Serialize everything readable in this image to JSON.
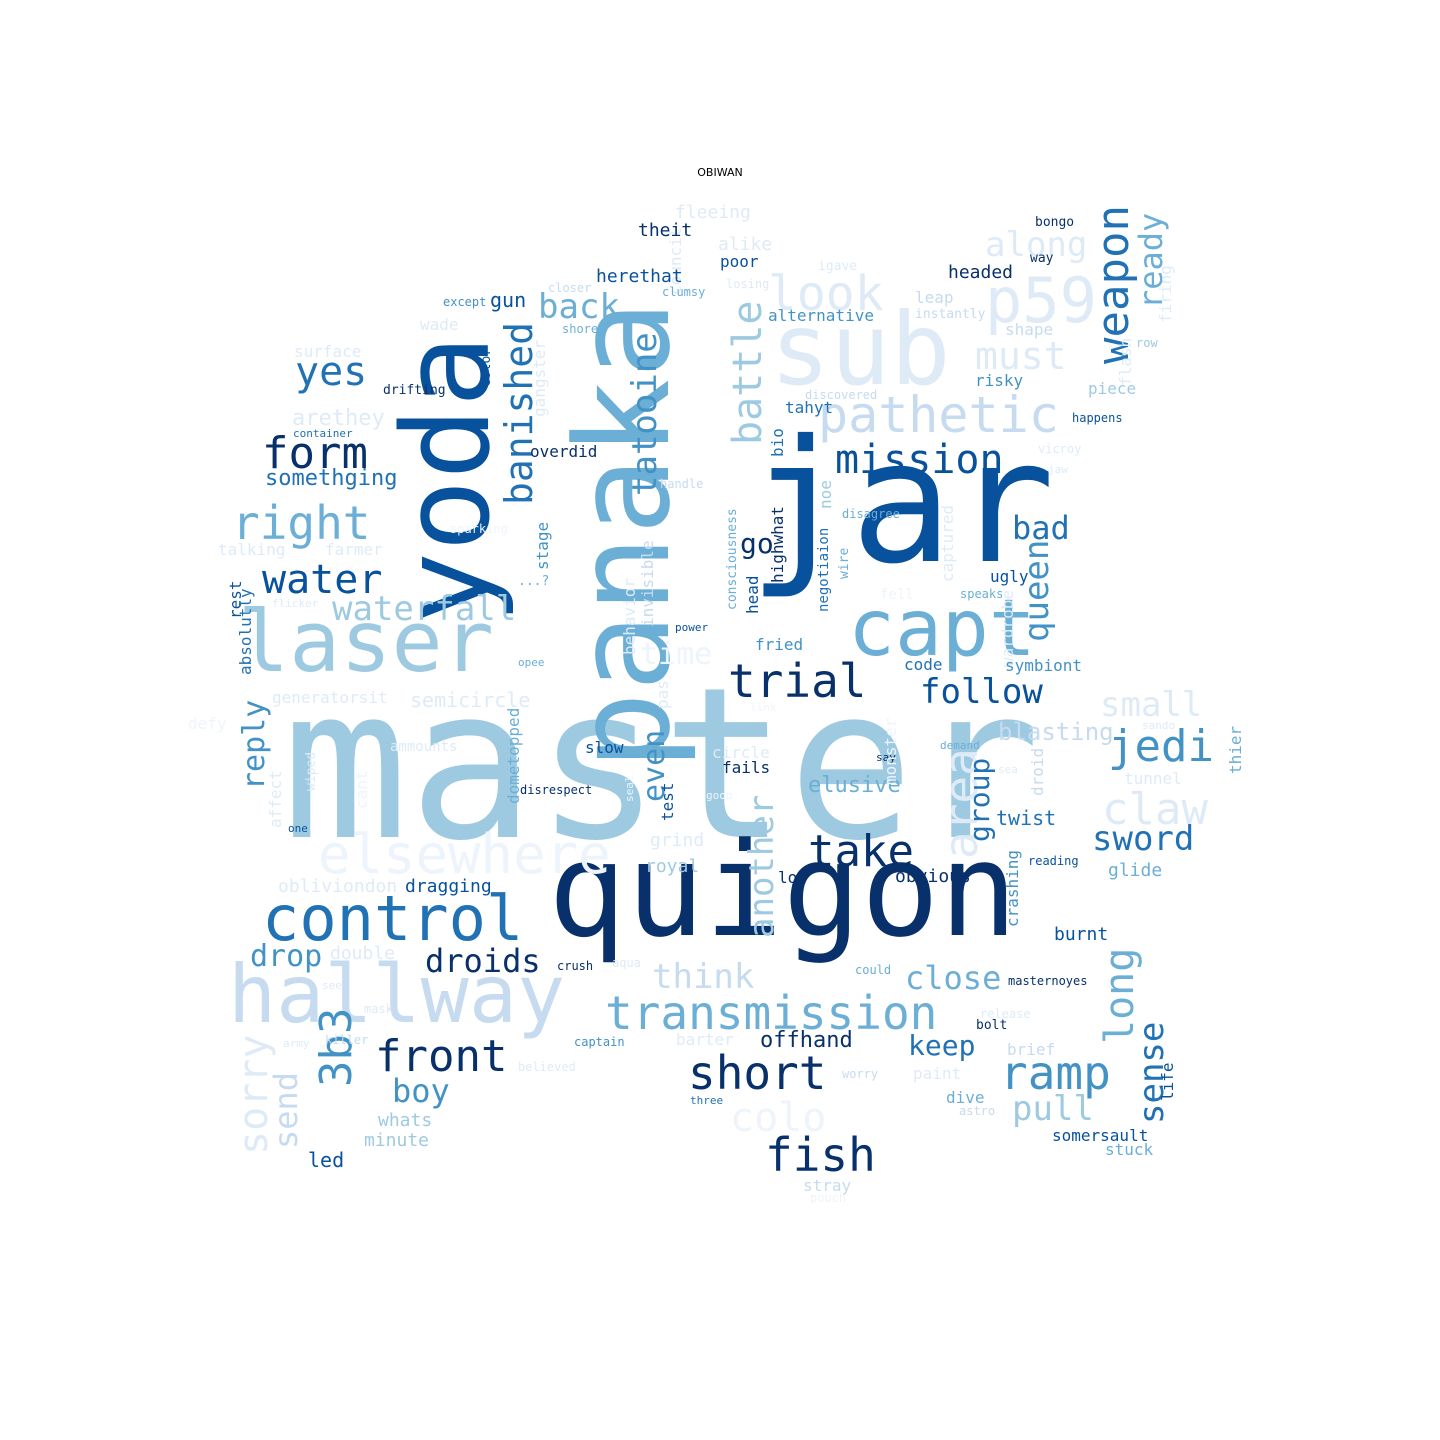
{
  "title": "OBIWAN",
  "palette": [
    "#08306b",
    "#08519c",
    "#2171b5",
    "#4292c6",
    "#6baed6",
    "#9ecae1",
    "#c6dbef",
    "#deebf7",
    "#eef4fb"
  ],
  "words": [
    {
      "text": "master",
      "c": 5
    },
    {
      "text": "quigon",
      "c": 0
    },
    {
      "text": "jar",
      "c": 1
    },
    {
      "text": "panaka",
      "c": 4
    },
    {
      "text": "yoda",
      "c": 1
    },
    {
      "text": "council",
      "c": 7
    },
    {
      "text": "sub",
      "c": 7
    },
    {
      "text": "laser",
      "c": 5
    },
    {
      "text": "capt",
      "c": 4
    },
    {
      "text": "droid",
      "c": 6
    },
    {
      "text": "hallway",
      "c": 6
    },
    {
      "text": "control",
      "c": 2
    },
    {
      "text": "elsewhere",
      "c": 8
    },
    {
      "text": "p59",
      "c": 7
    },
    {
      "text": "pathetic",
      "c": 6
    },
    {
      "text": "look",
      "c": 7
    },
    {
      "text": "transmission",
      "c": 4
    },
    {
      "text": "trial",
      "c": 0
    },
    {
      "text": "mission",
      "c": 1
    },
    {
      "text": "weapon",
      "c": 2
    },
    {
      "text": "along",
      "c": 7
    },
    {
      "text": "must",
      "c": 7
    },
    {
      "text": "short",
      "c": 0
    },
    {
      "text": "fish",
      "c": 0
    },
    {
      "text": "take",
      "c": 0
    },
    {
      "text": "ramp",
      "c": 3
    },
    {
      "text": "jedi",
      "c": 3
    },
    {
      "text": "claw",
      "c": 7
    },
    {
      "text": "front",
      "c": 0
    },
    {
      "text": "form",
      "c": 0
    },
    {
      "text": "right",
      "c": 4
    },
    {
      "text": "water",
      "c": 1
    },
    {
      "text": "yes",
      "c": 2
    },
    {
      "text": "back",
      "c": 4
    },
    {
      "text": "banished",
      "c": 2
    },
    {
      "text": "tatooine",
      "c": 3
    },
    {
      "text": "battle",
      "c": 5
    },
    {
      "text": "3b3",
      "c": 3
    },
    {
      "text": "sorry",
      "c": 7
    },
    {
      "text": "follow",
      "c": 1
    },
    {
      "text": "waterfall",
      "c": 5
    },
    {
      "text": "droids",
      "c": 0
    },
    {
      "text": "think",
      "c": 6
    },
    {
      "text": "close",
      "c": 4
    },
    {
      "text": "long",
      "c": 4
    },
    {
      "text": "sense",
      "c": 2
    },
    {
      "text": "colo",
      "c": 8
    },
    {
      "text": "sword",
      "c": 2
    },
    {
      "text": "pull",
      "c": 5
    },
    {
      "text": "keep",
      "c": 2
    },
    {
      "text": "boy",
      "c": 3
    },
    {
      "text": "drop",
      "c": 3
    },
    {
      "text": "send",
      "c": 6
    },
    {
      "text": "small",
      "c": 7
    },
    {
      "text": "bad",
      "c": 2
    },
    {
      "text": "queen",
      "c": 3
    },
    {
      "text": "time",
      "c": 8
    },
    {
      "text": "area",
      "c": 7
    },
    {
      "text": "another",
      "c": 5
    },
    {
      "text": "reply",
      "c": 3
    },
    {
      "text": "ready",
      "c": 4
    },
    {
      "text": "blasting",
      "c": 6
    },
    {
      "text": "even",
      "c": 3
    },
    {
      "text": "group",
      "c": 2
    },
    {
      "text": "elusive",
      "c": 4
    },
    {
      "text": "offhand",
      "c": 0
    },
    {
      "text": "somethging",
      "c": 2
    },
    {
      "text": "arethey",
      "c": 7
    },
    {
      "text": "semicircle",
      "c": 7
    },
    {
      "text": "go",
      "c": 0
    },
    {
      "text": "twist",
      "c": 2
    },
    {
      "text": "glide",
      "c": 4
    },
    {
      "text": "obvious",
      "c": 0
    },
    {
      "text": "burnt",
      "c": 1
    },
    {
      "text": "somersault",
      "c": 1
    },
    {
      "text": "stuck",
      "c": 4
    },
    {
      "text": "led",
      "c": 1
    },
    {
      "text": "whats",
      "c": 5
    },
    {
      "text": "minute",
      "c": 5
    },
    {
      "text": "dragging",
      "c": 1
    },
    {
      "text": "obliviondon",
      "c": 7
    },
    {
      "text": "double",
      "c": 7
    },
    {
      "text": "royal",
      "c": 5
    },
    {
      "text": "grind",
      "c": 7
    },
    {
      "text": "fleeing",
      "c": 7
    },
    {
      "text": "theit",
      "c": 0
    },
    {
      "text": "alike",
      "c": 7
    },
    {
      "text": "poor",
      "c": 1
    },
    {
      "text": "herethat",
      "c": 1
    },
    {
      "text": "headed",
      "c": 0
    },
    {
      "text": "bongo",
      "c": 0
    },
    {
      "text": "way",
      "c": 0
    },
    {
      "text": "igave",
      "c": 7
    },
    {
      "text": "leap",
      "c": 6
    },
    {
      "text": "instantly",
      "c": 6
    },
    {
      "text": "alternative",
      "c": 3
    },
    {
      "text": "shape",
      "c": 6
    },
    {
      "text": "risky",
      "c": 3
    },
    {
      "text": "piece",
      "c": 5
    },
    {
      "text": "happens",
      "c": 1
    },
    {
      "text": "tahyt",
      "c": 2
    },
    {
      "text": "bio",
      "c": 2
    },
    {
      "text": "overdid",
      "c": 0
    },
    {
      "text": "stage",
      "c": 3
    },
    {
      "text": "gun",
      "c": 1
    },
    {
      "text": "color",
      "c": 1
    },
    {
      "text": "gangster",
      "c": 7
    },
    {
      "text": "drifting",
      "c": 0
    },
    {
      "text": "surface",
      "c": 7
    },
    {
      "text": "wade",
      "c": 7
    },
    {
      "text": "container",
      "c": 2
    },
    {
      "text": "except",
      "c": 3
    },
    {
      "text": "closer",
      "c": 6
    },
    {
      "text": "clumsy",
      "c": 4
    },
    {
      "text": "losing",
      "c": 7
    },
    {
      "text": "shore",
      "c": 4
    },
    {
      "text": "firing",
      "c": 7
    },
    {
      "text": "flash",
      "c": 7
    },
    {
      "text": "row",
      "c": 5
    },
    {
      "text": "discovered",
      "c": 6
    },
    {
      "text": "vicroy",
      "c": 7
    },
    {
      "text": "jaw",
      "c": 7
    },
    {
      "text": "handle",
      "c": 6
    },
    {
      "text": "disagree",
      "c": 4
    },
    {
      "text": "noe",
      "c": 5
    },
    {
      "text": "highwhat",
      "c": 0
    },
    {
      "text": "consciousness",
      "c": 4
    },
    {
      "text": "negotiaion",
      "c": 2
    },
    {
      "text": "wire",
      "c": 4
    },
    {
      "text": "captured",
      "c": 7
    },
    {
      "text": "ugly",
      "c": 1
    },
    {
      "text": "speaks",
      "c": 4
    },
    {
      "text": "fell",
      "c": 8
    },
    {
      "text": "wardrobe",
      "c": 7
    },
    {
      "text": "symbiont",
      "c": 3
    },
    {
      "text": "code",
      "c": 2
    },
    {
      "text": "fried",
      "c": 3
    },
    {
      "text": "power",
      "c": 1
    },
    {
      "text": "head",
      "c": 1
    },
    {
      "text": "behavior",
      "c": 7
    },
    {
      "text": "invisible",
      "c": 6
    },
    {
      "text": "pas",
      "c": 7
    },
    {
      "text": "...?",
      "c": 4
    },
    {
      "text": "talking",
      "c": 7
    },
    {
      "text": "farmer",
      "c": 7
    },
    {
      "text": "sparking",
      "c": 8
    },
    {
      "text": "rest",
      "c": 1
    },
    {
      "text": "absolutly",
      "c": 2
    },
    {
      "text": "flicker",
      "c": 7
    },
    {
      "text": "generatorsit",
      "c": 7
    },
    {
      "text": "defy",
      "c": 8
    },
    {
      "text": "ammounts",
      "c": 7
    },
    {
      "text": "dometopped",
      "c": 4
    },
    {
      "text": "slow",
      "c": 1
    },
    {
      "text": "circle",
      "c": 7
    },
    {
      "text": "fails",
      "c": 0
    },
    {
      "text": "test",
      "c": 1
    },
    {
      "text": "disrespect",
      "c": 0
    },
    {
      "text": "opee",
      "c": 4
    },
    {
      "text": "demand",
      "c": 4
    },
    {
      "text": "say",
      "c": 0
    },
    {
      "text": "sea",
      "c": 7
    },
    {
      "text": "thier",
      "c": 4
    },
    {
      "text": "tunnel",
      "c": 7
    },
    {
      "text": "sando",
      "c": 7
    },
    {
      "text": "monster",
      "c": 8
    },
    {
      "text": "seal",
      "c": 8
    },
    {
      "text": "good",
      "c": 8
    },
    {
      "text": "wiped",
      "c": 7
    },
    {
      "text": "affect",
      "c": 7
    },
    {
      "text": "one",
      "c": 1
    },
    {
      "text": "cant",
      "c": 8
    },
    {
      "text": "crashing",
      "c": 3
    },
    {
      "text": "reading",
      "c": 1
    },
    {
      "text": "low",
      "c": 0
    },
    {
      "text": "crush",
      "c": 0
    },
    {
      "text": "aqua",
      "c": 7
    },
    {
      "text": "could",
      "c": 4
    },
    {
      "text": "masternoyes",
      "c": 0
    },
    {
      "text": "see",
      "c": 7
    },
    {
      "text": "mask",
      "c": 7
    },
    {
      "text": "release",
      "c": 7
    },
    {
      "text": "bolt",
      "c": 0
    },
    {
      "text": "killer",
      "c": 6
    },
    {
      "text": "army",
      "c": 7
    },
    {
      "text": "captain",
      "c": 3
    },
    {
      "text": "barter",
      "c": 7
    },
    {
      "text": "brief",
      "c": 6
    },
    {
      "text": "believed",
      "c": 7
    },
    {
      "text": "worry",
      "c": 6
    },
    {
      "text": "paint",
      "c": 7
    },
    {
      "text": "life",
      "c": 1
    },
    {
      "text": "dive",
      "c": 4
    },
    {
      "text": "astro",
      "c": 6
    },
    {
      "text": "three",
      "c": 2
    },
    {
      "text": "stray",
      "c": 6
    },
    {
      "text": "pouch",
      "c": 8
    },
    {
      "text": "link",
      "c": 8
    }
  ]
}
